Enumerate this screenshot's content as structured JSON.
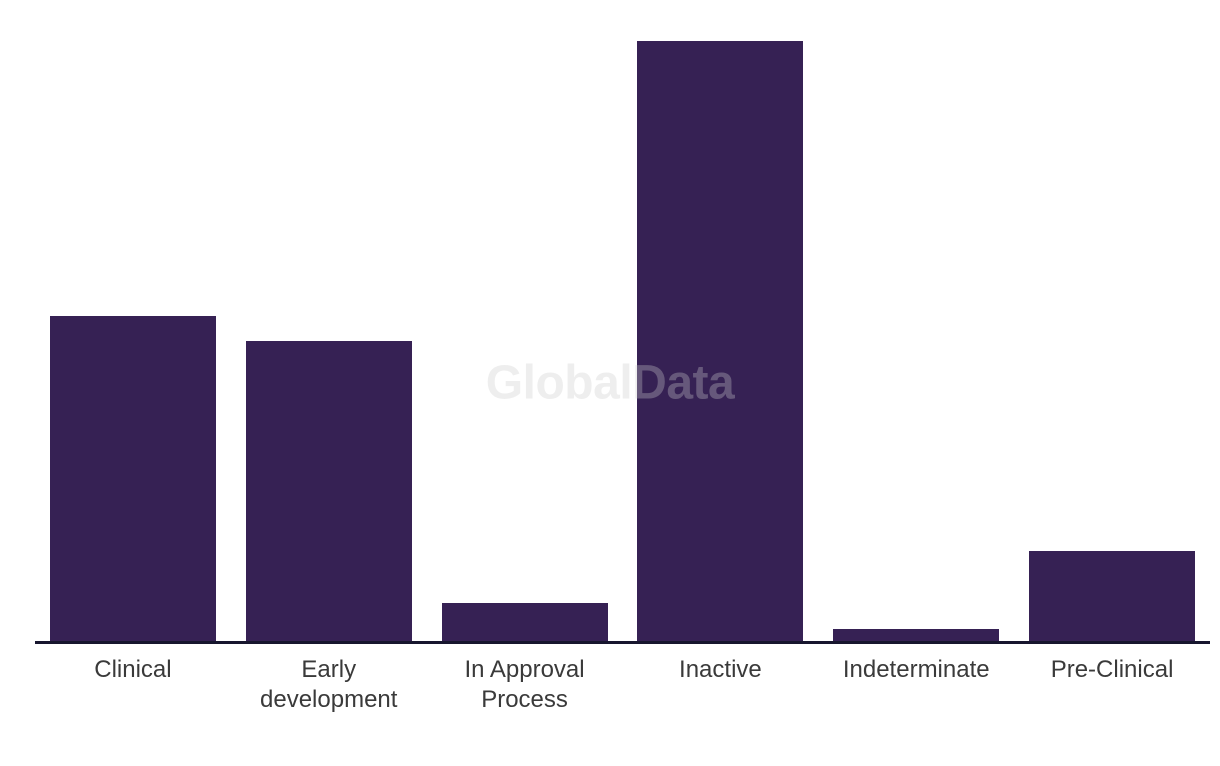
{
  "chart_data": {
    "type": "bar",
    "title": "",
    "xlabel": "",
    "ylabel": "",
    "categories": [
      "Clinical",
      "Early development",
      "In Approval Process",
      "Inactive",
      "Indeterminate",
      "Pre-Clinical"
    ],
    "values": [
      325,
      300,
      38,
      600,
      12,
      90
    ],
    "value_note": "no y-axis or data labels shown; values are relative units estimated from bar heights (tallest bar = 600)",
    "ylim": [
      0,
      600
    ],
    "grid": false,
    "legend": false,
    "bar_color": "#362154",
    "axis_line_color": "#17162E",
    "label_color": "#3A3A3A",
    "watermark": {
      "text": "GlobalData",
      "color": "#CDCDCD",
      "opacity": 0.32
    }
  }
}
